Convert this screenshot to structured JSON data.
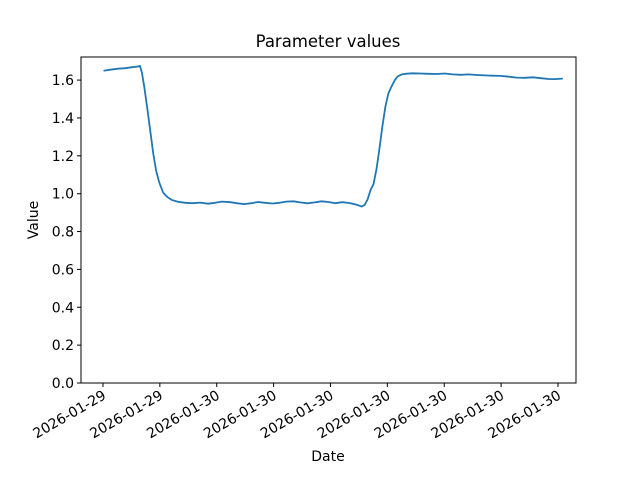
{
  "figure": {
    "background": "#ffffff"
  },
  "chart_data": {
    "type": "line",
    "title": "Parameter values",
    "xlabel": "Date",
    "ylabel": "Value",
    "grid": false,
    "legend": "none",
    "line_color": "#1f77b4",
    "axis_color": "#000000",
    "ylim": [
      0.0,
      1.722
    ],
    "y_tick_values": [
      0.0,
      0.2,
      0.4,
      0.6,
      0.8,
      1.0,
      1.2,
      1.4,
      1.6
    ],
    "y_tick_labels": [
      "0.0",
      "0.2",
      "0.4",
      "0.6",
      "0.8",
      "1.0",
      "1.2",
      "1.4",
      "1.6"
    ],
    "x_tick_labels": [
      "2026-01-29",
      "2026-01-29",
      "2026-01-30",
      "2026-01-30",
      "2026-01-30",
      "2026-01-30",
      "2026-01-30",
      "2026-01-30",
      "2026-01-30"
    ],
    "x_tick_positions": [
      0.0444,
      0.1593,
      0.2742,
      0.3891,
      0.504,
      0.6189,
      0.7338,
      0.8487,
      0.9636
    ],
    "x_tick_rotation_deg": 30,
    "series": [
      {
        "name": "Value",
        "x_frac": [
          0.047,
          0.059,
          0.075,
          0.089,
          0.103,
          0.115,
          0.119,
          0.123,
          0.128,
          0.134,
          0.14,
          0.146,
          0.152,
          0.158,
          0.166,
          0.174,
          0.184,
          0.196,
          0.211,
          0.225,
          0.241,
          0.257,
          0.271,
          0.285,
          0.302,
          0.316,
          0.33,
          0.344,
          0.358,
          0.372,
          0.387,
          0.401,
          0.415,
          0.429,
          0.443,
          0.457,
          0.472,
          0.486,
          0.5,
          0.514,
          0.528,
          0.542,
          0.553,
          0.561,
          0.567,
          0.573,
          0.579,
          0.585,
          0.591,
          0.597,
          0.603,
          0.609,
          0.615,
          0.621,
          0.628,
          0.634,
          0.64,
          0.648,
          0.658,
          0.67,
          0.686,
          0.702,
          0.719,
          0.735,
          0.751,
          0.767,
          0.783,
          0.8,
          0.816,
          0.832,
          0.848,
          0.864,
          0.88,
          0.897,
          0.913,
          0.929,
          0.945,
          0.957,
          0.972
        ],
        "y": [
          1.65,
          1.655,
          1.66,
          1.663,
          1.668,
          1.672,
          1.675,
          1.64,
          1.56,
          1.45,
          1.33,
          1.21,
          1.12,
          1.06,
          1.005,
          0.983,
          0.966,
          0.957,
          0.952,
          0.95,
          0.953,
          0.947,
          0.952,
          0.958,
          0.955,
          0.949,
          0.945,
          0.95,
          0.956,
          0.952,
          0.948,
          0.952,
          0.958,
          0.96,
          0.954,
          0.949,
          0.954,
          0.96,
          0.956,
          0.95,
          0.955,
          0.951,
          0.944,
          0.938,
          0.932,
          0.94,
          0.97,
          1.02,
          1.05,
          1.13,
          1.24,
          1.36,
          1.46,
          1.53,
          1.57,
          1.6,
          1.62,
          1.63,
          1.634,
          1.636,
          1.635,
          1.633,
          1.632,
          1.635,
          1.63,
          1.628,
          1.63,
          1.627,
          1.625,
          1.623,
          1.622,
          1.618,
          1.613,
          1.612,
          1.615,
          1.61,
          1.606,
          1.605,
          1.608
        ]
      }
    ]
  }
}
